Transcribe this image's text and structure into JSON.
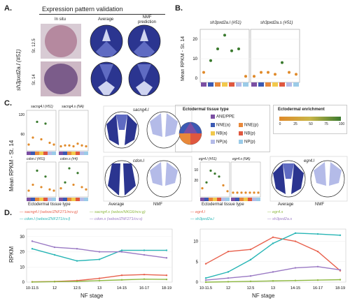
{
  "panelA": {
    "label": "A.",
    "title": "Expression pattern validation",
    "col_insitu": "In situ",
    "col_average": "Average",
    "col_nmf": "NMF prediction",
    "gene": "sh3pxd2a.l (#51)",
    "stage1": "St. 12.5",
    "stage2": "St. 14"
  },
  "panelB": {
    "label": "B.",
    "ylabel": "Mean RPKM - St. 14",
    "title_left": "sh3pxd2a.l (#51)",
    "title_right": "sh3pxd2a.s (#51)"
  },
  "panelC": {
    "label": "C.",
    "ylabel": "Mean RPKM - St. 14",
    "xlabel": "Ectodermal tissue type",
    "g1": "sacng4.l (#51)",
    "g2": "sacng4.s (NA)",
    "g3": "sacng4.l",
    "g4": "cdon.l (#51)",
    "g5": "cdon.s (#4)",
    "g6": "cdon.l",
    "g7": "egr4.l (#51)",
    "g8": "egr4.s (NA)",
    "g9": "egr4.l",
    "average": "Average",
    "nmf": "NMF",
    "legend_title": "Ectodermal tissue type",
    "legend_items": [
      "ANE/PPE",
      "NNE(a)",
      "NNE(p)",
      "NB(a)",
      "NB(p)",
      "NP(a)",
      "NP(p)"
    ],
    "enrich_title": "Ectodermal enrichment",
    "enrich_ticks": [
      "0",
      "25",
      "50",
      "75",
      "100"
    ]
  },
  "panelD": {
    "label": "D.",
    "left_legend": [
      "sacng4.l (sebox/ZNF271/ncv.g)",
      "sacng4.s (sebox/NKG6/ncv.g)",
      "cdon.l (sebox/ZNF271/cv.l)",
      "cdon.s (sebox/ZNF271/cv.s)"
    ],
    "right_legend": [
      "egr4.l",
      "egr4.s",
      "sh3pxd2a.l",
      "sh3pxd2a.s"
    ],
    "ylabel": "RPKM",
    "xlabel_left": "NF stage",
    "xlabel_right": "NF stage"
  },
  "chart_data": [
    {
      "type": "scatter",
      "title": "sh3pxd2a.l (#51)",
      "ylabel": "Mean RPKM - St. 14",
      "ylim": [
        0,
        25
      ],
      "yticks": [
        0,
        10,
        20
      ],
      "values": [
        3,
        9,
        15,
        22,
        14,
        15,
        1
      ]
    },
    {
      "type": "scatter",
      "title": "sh3pxd2a.s (#51)",
      "ylim": [
        0,
        25
      ],
      "values": [
        1,
        3,
        3,
        2,
        8,
        3,
        2
      ]
    },
    {
      "type": "line",
      "xlabel": "NF stage",
      "ylabel": "RPKM",
      "categories": [
        "10-11.5",
        "12",
        "12.5",
        "13",
        "14-15",
        "16-17",
        "18-19"
      ],
      "ylim": [
        0,
        35
      ],
      "yticks": [
        0,
        10,
        20,
        30
      ],
      "series": [
        {
          "name": "sacng4.l (sebox/ZNF271/ncv.g)",
          "color": "#e8604c",
          "values": [
            0.2,
            0.4,
            1.0,
            2.5,
            4.5,
            5.0,
            4.5
          ]
        },
        {
          "name": "sacng4.s (sebox/NKG6/ncv.g)",
          "color": "#8db840",
          "values": [
            0.1,
            0.3,
            0.5,
            1.0,
            1.5,
            2.0,
            1.8
          ]
        },
        {
          "name": "cdon.l (sebox/ZNF271/cv.l)",
          "color": "#27b5b5",
          "values": [
            22,
            18,
            14,
            15,
            21,
            21,
            21
          ]
        },
        {
          "name": "cdon.s (sebox/ZNF271/cv.s)",
          "color": "#9a79c4",
          "values": [
            27,
            23,
            22,
            20,
            20,
            18,
            16
          ]
        }
      ]
    },
    {
      "type": "line",
      "xlabel": "NF stage",
      "categories": [
        "10-11.5",
        "12",
        "12.5",
        "13",
        "14-15",
        "16-17",
        "18-19"
      ],
      "ylim": [
        0,
        13
      ],
      "yticks": [
        0,
        5,
        10
      ],
      "series": [
        {
          "name": "egr4.l",
          "color": "#e8604c",
          "values": [
            4.5,
            7.5,
            8.0,
            11.0,
            10.0,
            7.5,
            2.8
          ]
        },
        {
          "name": "egr4.s",
          "color": "#8db840",
          "values": [
            0.0,
            0.1,
            0.2,
            0.3,
            0.4,
            0.5,
            0.6
          ]
        },
        {
          "name": "sh3pxd2a.l",
          "color": "#27b5b5",
          "values": [
            1.0,
            2.5,
            5.5,
            9.5,
            12.0,
            11.8,
            11.5
          ]
        },
        {
          "name": "sh3pxd2a.s",
          "color": "#9a79c4",
          "values": [
            0.5,
            1.0,
            1.5,
            2.5,
            3.5,
            3.8,
            3.0
          ]
        }
      ]
    }
  ],
  "colors": {
    "tissue": [
      "#7b4fa3",
      "#3c5ab3",
      "#e8883a",
      "#f2c94c",
      "#e0573f",
      "#b4bbe8",
      "#9bcbe8"
    ],
    "dark_blue": "#2b3590",
    "mid_blue": "#5f6bc2",
    "light_blue": "#cfd4f0",
    "insitu": "#b08296",
    "green": "#3a7a2e",
    "orange": "#e08a2a"
  }
}
